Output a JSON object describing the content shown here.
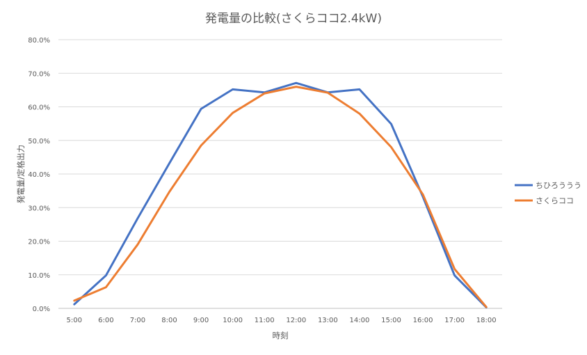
{
  "chart_data": {
    "type": "line",
    "title": "発電量の比較(さくらココ2.4kW)",
    "xlabel": "時刻",
    "ylabel": "発電量/定格出力",
    "categories": [
      "5:00",
      "6:00",
      "7:00",
      "8:00",
      "9:00",
      "10:00",
      "11:00",
      "12:00",
      "13:00",
      "14:00",
      "15:00",
      "16:00",
      "17:00",
      "18:00"
    ],
    "yticks": [
      "0.0%",
      "10.0%",
      "20.0%",
      "30.0%",
      "40.0%",
      "50.0%",
      "60.0%",
      "70.0%",
      "80.0%"
    ],
    "ylim": [
      0,
      80
    ],
    "grid": true,
    "legend_position": "right",
    "series": [
      {
        "name": "ちひろううう",
        "color": "#4472C4",
        "values": [
          1.2,
          9.8,
          26.8,
          43.2,
          59.4,
          65.2,
          64.3,
          67.1,
          64.3,
          65.2,
          54.9,
          33.2,
          9.8,
          0.3
        ]
      },
      {
        "name": "さくらココ",
        "color": "#ED7D31",
        "values": [
          2.3,
          6.3,
          19.0,
          34.7,
          48.5,
          58.2,
          64.0,
          66.0,
          64.2,
          58.0,
          48.0,
          33.9,
          11.7,
          0.4
        ]
      }
    ]
  }
}
